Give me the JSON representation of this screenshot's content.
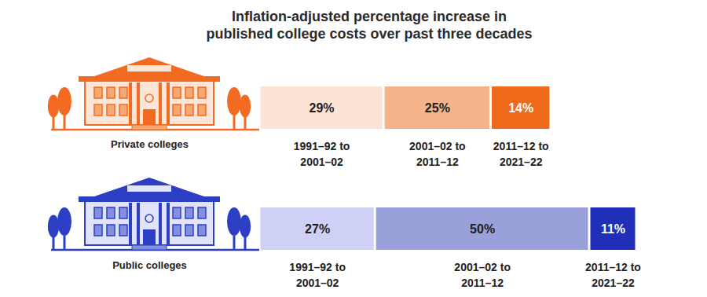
{
  "chart_data": {
    "type": "bar",
    "title": "Inflation-adjusted percentage increase in published college costs over past three decades",
    "orientation": "horizontal",
    "stacked": true,
    "data_labels": true,
    "tick_labels": "y",
    "categories": [
      "Private colleges",
      "Public colleges"
    ],
    "xlim": [
      0,
      88
    ],
    "series": [
      {
        "name": "1991–92 to 2001–02",
        "colors": [
          "#fbe3d6",
          "#cfd0f6"
        ],
        "values": [
          29,
          27
        ],
        "value_labels": [
          "29%",
          "27%"
        ]
      },
      {
        "name": "2001–02 to 2011–12",
        "colors": [
          "#f6b38a",
          "#9aa0da"
        ],
        "values": [
          25,
          50
        ],
        "value_labels": [
          "25%",
          "50%"
        ]
      },
      {
        "name": "2011–12 to 2021–22",
        "colors": [
          "#f06a1c",
          "#1f2fb8"
        ],
        "values": [
          14,
          11
        ],
        "value_labels": [
          "14%",
          "11%"
        ]
      }
    ]
  }
}
